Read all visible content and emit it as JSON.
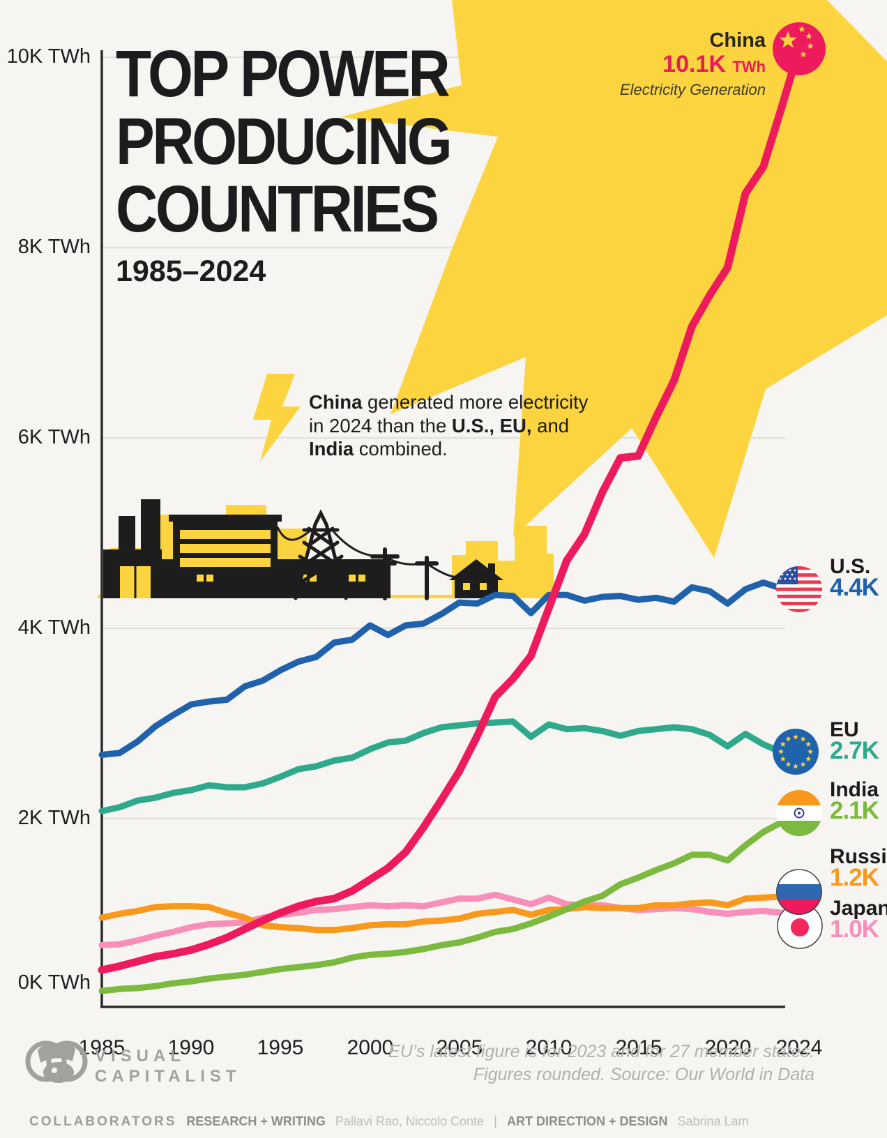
{
  "title": {
    "line1": "TOP POWER",
    "line2": "PRODUCING",
    "line3": "COUNTRIES",
    "subtitle": "1985–2024"
  },
  "callout": {
    "l1b": "China",
    "l1": " generated more electricity",
    "l2a": "in 2024 than the ",
    "l2b": "U.S., EU,",
    "l2c": " and",
    "l3b": "India",
    "l3": " combined."
  },
  "china_annotation": {
    "name": "China",
    "value": "10.1K",
    "unit": "TWh",
    "caption": "Electricity Generation"
  },
  "y_axis": {
    "labels": [
      "10K TWh",
      "8K TWh",
      "6K TWh",
      "4K TWh",
      "2K TWh",
      "0K TWh"
    ]
  },
  "x_axis": {
    "labels": [
      "1985",
      "1990",
      "1995",
      "2000",
      "2005",
      "2010",
      "2015",
      "2020",
      "2024"
    ]
  },
  "legend": [
    {
      "name": "U.S.",
      "value": "4.4K",
      "color": "#1f62ab",
      "flag": "us"
    },
    {
      "name": "EU",
      "value": "2.7K",
      "color": "#2fa98c",
      "flag": "eu"
    },
    {
      "name": "India",
      "value": "2.1K",
      "color": "#7cb93f",
      "flag": "india"
    },
    {
      "name": "Russia",
      "value": "1.2K",
      "color": "#f8981d",
      "flag": "russia"
    },
    {
      "name": "Japan",
      "value": "1.0K",
      "color": "#f78fb9",
      "flag": "japan"
    }
  ],
  "footer": {
    "brand_line1": "VISUAL",
    "brand_line2": "CAPITALIST",
    "note_line1": "EU’s latest figure is for 2023 and for 27 member states.",
    "note_line2": "Figures rounded. Source: Our World in Data"
  },
  "collaborators": {
    "head": "COLLABORATORS",
    "role1": "RESEARCH + WRITING",
    "people1": "Pallavi Rao, Niccolo Conte",
    "sep": "|",
    "role2": "ART DIRECTION + DESIGN",
    "people2": "Sabrina Lam"
  },
  "colors": {
    "china": "#ed1a5c",
    "yellow": "#fbd440",
    "ink": "#1d1d1d",
    "grid": "#e4e1dc",
    "background": "#f7f5f2"
  },
  "chart_data": {
    "type": "line",
    "title": "Top Power Producing Countries 1985–2024",
    "ylabel": "Electricity generation (K TWh)",
    "ylim": [
      0,
      10.4
    ],
    "x_start_year": 1985,
    "x_end_year": 2024,
    "grid": "horizontal",
    "legend_position": "right",
    "years": [
      1985,
      1986,
      1987,
      1988,
      1989,
      1990,
      1991,
      1992,
      1993,
      1994,
      1995,
      1996,
      1997,
      1998,
      1999,
      2000,
      2001,
      2002,
      2003,
      2004,
      2005,
      2006,
      2007,
      2008,
      2009,
      2010,
      2011,
      2012,
      2013,
      2014,
      2015,
      2016,
      2017,
      2018,
      2019,
      2020,
      2021,
      2022,
      2023,
      2024
    ],
    "series": [
      {
        "name": "Japan",
        "color": "#f78fb9",
        "end_label": "1.0K",
        "values": [
          0.67,
          0.68,
          0.72,
          0.77,
          0.81,
          0.86,
          0.89,
          0.9,
          0.91,
          0.96,
          0.99,
          1.01,
          1.04,
          1.05,
          1.07,
          1.09,
          1.08,
          1.09,
          1.08,
          1.12,
          1.16,
          1.16,
          1.2,
          1.15,
          1.1,
          1.17,
          1.1,
          1.09,
          1.09,
          1.06,
          1.04,
          1.05,
          1.06,
          1.05,
          1.02,
          1.0,
          1.02,
          1.03,
          1.01,
          1.0
        ]
      },
      {
        "name": "Russia",
        "color": "#f8981d",
        "end_label": "1.2K",
        "values": [
          0.96,
          1.0,
          1.03,
          1.07,
          1.08,
          1.08,
          1.07,
          1.01,
          0.96,
          0.88,
          0.86,
          0.85,
          0.83,
          0.83,
          0.85,
          0.88,
          0.89,
          0.89,
          0.92,
          0.93,
          0.95,
          1.0,
          1.02,
          1.04,
          0.99,
          1.04,
          1.05,
          1.07,
          1.06,
          1.06,
          1.06,
          1.09,
          1.09,
          1.11,
          1.12,
          1.09,
          1.16,
          1.17,
          1.18,
          1.2
        ]
      },
      {
        "name": "India",
        "color": "#7cb93f",
        "end_label": "2.1K",
        "values": [
          0.19,
          0.21,
          0.22,
          0.24,
          0.27,
          0.29,
          0.32,
          0.34,
          0.36,
          0.39,
          0.42,
          0.44,
          0.46,
          0.49,
          0.54,
          0.57,
          0.58,
          0.6,
          0.63,
          0.67,
          0.7,
          0.75,
          0.81,
          0.84,
          0.9,
          0.97,
          1.05,
          1.13,
          1.19,
          1.31,
          1.38,
          1.46,
          1.53,
          1.62,
          1.62,
          1.56,
          1.72,
          1.86,
          1.96,
          2.1
        ]
      },
      {
        "name": "EU",
        "color": "#2fa98c",
        "end_label": "2.7K",
        "values": [
          2.08,
          2.12,
          2.19,
          2.22,
          2.27,
          2.3,
          2.35,
          2.33,
          2.33,
          2.37,
          2.44,
          2.52,
          2.55,
          2.61,
          2.64,
          2.73,
          2.8,
          2.82,
          2.9,
          2.96,
          2.98,
          3.0,
          3.01,
          3.02,
          2.86,
          2.99,
          2.94,
          2.95,
          2.92,
          2.87,
          2.92,
          2.94,
          2.96,
          2.94,
          2.88,
          2.76,
          2.89,
          2.78,
          2.7,
          2.7
        ]
      },
      {
        "name": "U.S.",
        "color": "#1f62ab",
        "end_label": "4.4K",
        "values": [
          2.67,
          2.69,
          2.81,
          2.97,
          3.09,
          3.2,
          3.23,
          3.25,
          3.39,
          3.45,
          3.56,
          3.65,
          3.7,
          3.85,
          3.88,
          4.03,
          3.93,
          4.03,
          4.05,
          4.15,
          4.27,
          4.26,
          4.35,
          4.34,
          4.16,
          4.35,
          4.35,
          4.29,
          4.33,
          4.34,
          4.3,
          4.32,
          4.28,
          4.43,
          4.39,
          4.26,
          4.41,
          4.48,
          4.42,
          4.44
        ]
      },
      {
        "name": "China",
        "color": "#ed1a5c",
        "end_label": "10.1K",
        "values": [
          0.41,
          0.45,
          0.5,
          0.55,
          0.58,
          0.62,
          0.68,
          0.75,
          0.84,
          0.93,
          1.01,
          1.08,
          1.13,
          1.16,
          1.24,
          1.36,
          1.48,
          1.65,
          1.91,
          2.2,
          2.5,
          2.87,
          3.28,
          3.47,
          3.71,
          4.21,
          4.71,
          4.99,
          5.43,
          5.79,
          5.81,
          6.22,
          6.6,
          7.17,
          7.5,
          7.79,
          8.57,
          8.85,
          9.46,
          10.09
        ]
      }
    ]
  }
}
